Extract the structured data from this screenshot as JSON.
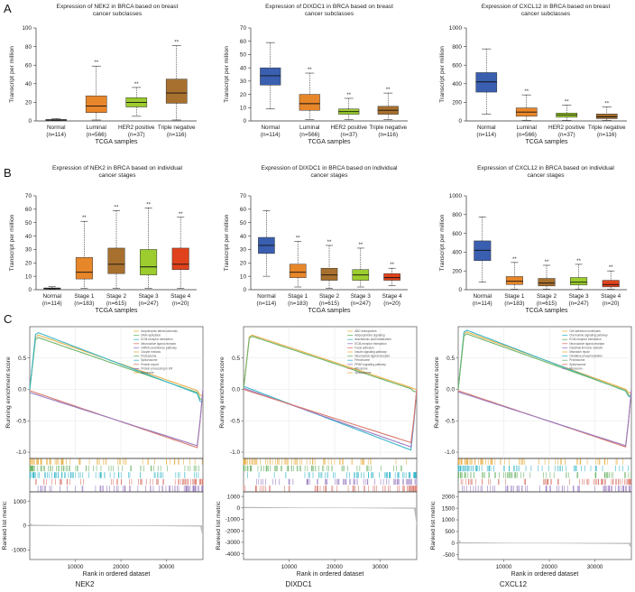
{
  "panels": {
    "A": "A",
    "B": "B",
    "C": "C"
  },
  "colors": {
    "normal": "#3a5fb0",
    "luminal": "#e8862a",
    "her2": "#9ccc2e",
    "triple": "#a8702e",
    "stage1": "#e8862a",
    "stage2": "#a8702e",
    "stage3": "#9ccc2e",
    "stage4": "#e0431c"
  },
  "chart_data": [
    {
      "type": "box",
      "id": "A1",
      "title": [
        "Expression of NEK2 in BRCA based on breast",
        "cancer subclasses"
      ],
      "ylabel": "Transcript per million",
      "xlabel": "TCGA samples",
      "ylim": [
        0,
        100
      ],
      "yticks": [
        0,
        20,
        40,
        60,
        80,
        100
      ],
      "categories": [
        "Normal",
        "Luminal",
        "HER2 positive",
        "Triple negative"
      ],
      "counts": [
        "(n=114)",
        "(n=566)",
        "(n=37)",
        "(n=116)"
      ],
      "colors": [
        "#3a5fb0",
        "#e8862a",
        "#9ccc2e",
        "#a8702e"
      ],
      "boxes": [
        {
          "min": 0.2,
          "q1": 0.6,
          "median": 1.0,
          "q3": 1.5,
          "max": 2.5
        },
        {
          "min": 1,
          "q1": 9,
          "median": 16,
          "q3": 27,
          "max": 59
        },
        {
          "min": 5,
          "q1": 15,
          "median": 20,
          "q3": 25,
          "max": 36
        },
        {
          "min": 1,
          "q1": 19,
          "median": 30,
          "q3": 45,
          "max": 81
        }
      ],
      "significance": [
        "",
        "**",
        "**",
        "**"
      ]
    },
    {
      "type": "box",
      "id": "A2",
      "title": [
        "Expression of DIXDC1 in BRCA based on breast",
        "cancer subclasses"
      ],
      "ylabel": "Transcript per million",
      "xlabel": "TCGA samples",
      "ylim": [
        0,
        70
      ],
      "yticks": [
        0,
        10,
        20,
        30,
        40,
        50,
        60,
        70
      ],
      "categories": [
        "Normal",
        "Luminal",
        "HER2 positive",
        "Triple negative"
      ],
      "counts": [
        "(n=114)",
        "(n=566)",
        "(n=37)",
        "(n=116)"
      ],
      "colors": [
        "#3a5fb0",
        "#e8862a",
        "#9ccc2e",
        "#a8702e"
      ],
      "boxes": [
        {
          "min": 9,
          "q1": 27,
          "median": 34,
          "q3": 40,
          "max": 59
        },
        {
          "min": 1,
          "q1": 8,
          "median": 13,
          "q3": 20,
          "max": 36
        },
        {
          "min": 1,
          "q1": 5,
          "median": 7,
          "q3": 9,
          "max": 17
        },
        {
          "min": 1,
          "q1": 5,
          "median": 8,
          "q3": 11,
          "max": 21
        }
      ],
      "significance": [
        "",
        "**",
        "**",
        "**"
      ]
    },
    {
      "type": "box",
      "id": "A3",
      "title": [
        "Expression of CXCL12 in BRCA based on breast",
        "cancer subclasses"
      ],
      "ylabel": "Transcript per million",
      "xlabel": "TCGA samples",
      "ylim": [
        0,
        1000
      ],
      "yticks": [
        0,
        200,
        400,
        600,
        800,
        1000
      ],
      "categories": [
        "Normal",
        "Luminal",
        "HER2 positive",
        "Triple negative"
      ],
      "counts": [
        "(n=114)",
        "(n=566)",
        "(n=37)",
        "(n=116)"
      ],
      "colors": [
        "#3a5fb0",
        "#e8862a",
        "#9ccc2e",
        "#a8702e"
      ],
      "boxes": [
        {
          "min": 75,
          "q1": 310,
          "median": 420,
          "q3": 520,
          "max": 775
        },
        {
          "min": 5,
          "q1": 50,
          "median": 95,
          "q3": 140,
          "max": 280
        },
        {
          "min": 5,
          "q1": 40,
          "median": 65,
          "q3": 85,
          "max": 170
        },
        {
          "min": 5,
          "q1": 25,
          "median": 45,
          "q3": 75,
          "max": 150
        }
      ],
      "significance": [
        "",
        "**",
        "**",
        "**"
      ]
    },
    {
      "type": "box",
      "id": "B1",
      "title": [
        "Expression of NEK2 in BRCA based on individual",
        "cancer stages"
      ],
      "ylabel": "Transcript per million",
      "xlabel": "TCGA samples",
      "ylim": [
        0,
        70
      ],
      "yticks": [
        0,
        10,
        20,
        30,
        40,
        50,
        60,
        70
      ],
      "categories": [
        "Normal",
        "Stage 1",
        "Stage 2",
        "Stage 3",
        "Stage 4"
      ],
      "counts": [
        "(n=114)",
        "(n=183)",
        "(n=615)",
        "(n=247)",
        "(n=20)"
      ],
      "colors": [
        "#3a5fb0",
        "#e8862a",
        "#a8702e",
        "#9ccc2e",
        "#e0431c"
      ],
      "boxes": [
        {
          "min": 0.2,
          "q1": 0.5,
          "median": 0.9,
          "q3": 1.3,
          "max": 2.2
        },
        {
          "min": 1,
          "q1": 8,
          "median": 13,
          "q3": 24,
          "max": 51
        },
        {
          "min": 1,
          "q1": 12,
          "median": 19,
          "q3": 31,
          "max": 59
        },
        {
          "min": 1,
          "q1": 11,
          "median": 17,
          "q3": 30,
          "max": 61
        },
        {
          "min": 1,
          "q1": 15,
          "median": 19,
          "q3": 31,
          "max": 54
        }
      ],
      "significance": [
        "",
        "**",
        "**",
        "**",
        "**"
      ]
    },
    {
      "type": "box",
      "id": "B2",
      "title": [
        "Expression of DIXDC1 in BRCA based on individual",
        "cancer stages"
      ],
      "ylabel": "Transcript per million",
      "xlabel": "TCGA samples",
      "ylim": [
        0,
        70
      ],
      "yticks": [
        0,
        10,
        20,
        30,
        40,
        50,
        60,
        70
      ],
      "categories": [
        "Normal",
        "Stage 1",
        "Stage 2",
        "Stage 3",
        "Stage 4"
      ],
      "counts": [
        "(n=114)",
        "(n=183)",
        "(n=615)",
        "(n=247)",
        "(n=20)"
      ],
      "colors": [
        "#3a5fb0",
        "#e8862a",
        "#a8702e",
        "#9ccc2e",
        "#e0431c"
      ],
      "boxes": [
        {
          "min": 10,
          "q1": 27,
          "median": 33,
          "q3": 39,
          "max": 59
        },
        {
          "min": 2,
          "q1": 9,
          "median": 13,
          "q3": 19,
          "max": 36
        },
        {
          "min": 1,
          "q1": 7,
          "median": 11,
          "q3": 16,
          "max": 33
        },
        {
          "min": 2,
          "q1": 7,
          "median": 11,
          "q3": 15,
          "max": 31
        },
        {
          "min": 3,
          "q1": 7,
          "median": 9,
          "q3": 12,
          "max": 16
        }
      ],
      "significance": [
        "",
        "**",
        "**",
        "**",
        "**"
      ]
    },
    {
      "type": "box",
      "id": "B3",
      "title": [
        "Expression of CXCL12 in BRCA based on individual",
        "cancer stages"
      ],
      "ylabel": "Transcript per million",
      "xlabel": "TCGA samples",
      "ylim": [
        0,
        1000
      ],
      "yticks": [
        0,
        200,
        400,
        600,
        800,
        1000
      ],
      "categories": [
        "Normal",
        "Stage 1",
        "Stage 2",
        "Stage 3",
        "Stage 4"
      ],
      "counts": [
        "(n=114)",
        "(n=183)",
        "(n=615)",
        "(n=247)",
        "(n=20)"
      ],
      "colors": [
        "#3a5fb0",
        "#e8862a",
        "#a8702e",
        "#9ccc2e",
        "#e0431c"
      ],
      "boxes": [
        {
          "min": 80,
          "q1": 310,
          "median": 420,
          "q3": 520,
          "max": 775
        },
        {
          "min": 5,
          "q1": 55,
          "median": 90,
          "q3": 140,
          "max": 290
        },
        {
          "min": 5,
          "q1": 40,
          "median": 70,
          "q3": 120,
          "max": 260
        },
        {
          "min": 5,
          "q1": 50,
          "median": 80,
          "q3": 130,
          "max": 270
        },
        {
          "min": 5,
          "q1": 30,
          "median": 55,
          "q3": 100,
          "max": 200
        }
      ],
      "significance": [
        "",
        "**",
        "**",
        "**",
        "**"
      ]
    },
    {
      "type": "gsea",
      "id": "C1",
      "gene": "NEK2",
      "ylabel_es": "Running enrichment score",
      "ylabel_metric": "Ranked list metric",
      "xlabel": "Rank in ordered dataset",
      "xticks": [
        10000,
        20000,
        30000
      ],
      "xlim": [
        0,
        38000
      ],
      "es_yticks": [
        0.5,
        0.0,
        -0.5,
        -1.0
      ],
      "es_ylim": [
        -1.1,
        1.0
      ],
      "metric_yticks": [
        1000,
        0,
        -1000
      ],
      "metric_ylim": [
        -1400,
        1400
      ],
      "legend": [
        "Amyotrophic lateral sclerosis",
        "DNA replication",
        "ECM-receptor interaction",
        "Neuroactive ligand-receptor",
        "mRNA surveillance pathway",
        "Oocyte meiosis",
        "Proteasome",
        "Spliceosome",
        "Protein export",
        "Protein processing in ER",
        "Ribosome"
      ],
      "series": [
        {
          "name": "up-1",
          "color": "#e8b04a",
          "peak": 0.88,
          "end": -0.05
        },
        {
          "name": "up-2",
          "color": "#6fb56a",
          "peak": 0.84,
          "end": -0.08
        },
        {
          "name": "up-3",
          "color": "#3bb7c9",
          "peak": 0.92,
          "end": -0.1
        },
        {
          "name": "down-1",
          "color": "#d97a6e",
          "peak": -0.93,
          "end": -0.02
        },
        {
          "name": "down-2",
          "color": "#9a7cc1",
          "peak": -0.9,
          "end": -0.05
        }
      ]
    },
    {
      "type": "gsea",
      "id": "C2",
      "gene": "DIXDC1",
      "ylabel_es": "Running enrichment score",
      "ylabel_metric": "Ranked list metric",
      "xlabel": "Rank in ordered dataset",
      "xticks": [
        10000,
        20000,
        30000
      ],
      "xlim": [
        0,
        38000
      ],
      "es_yticks": [
        0.5,
        0.0,
        -0.5,
        -1.0
      ],
      "es_ylim": [
        -1.1,
        1.0
      ],
      "metric_yticks": [
        1000,
        0,
        -1000,
        -2000,
        -3000,
        -4000
      ],
      "metric_ylim": [
        -4500,
        1400
      ],
      "legend": [
        "ABC transporters",
        "Adipocytokine signaling",
        "Arachidonic acid metabolism",
        "ECM-receptor interaction",
        "Focal adhesion",
        "Insulin signaling pathway",
        "Neuroactive ligand-receptor",
        "Peroxisome",
        "PPAR signaling pathway",
        "Ribosome",
        "Spliceosome"
      ],
      "series": [
        {
          "name": "up-1",
          "color": "#e8b04a",
          "peak": 0.88,
          "end": 0.0
        },
        {
          "name": "up-2",
          "color": "#6fb56a",
          "peak": 0.86,
          "end": -0.02
        },
        {
          "name": "down-1",
          "color": "#3bb7c9",
          "peak": -0.97,
          "end": 0.05
        },
        {
          "name": "down-2",
          "color": "#9a7cc1",
          "peak": -0.92,
          "end": 0.02
        },
        {
          "name": "down-3",
          "color": "#d97a6e",
          "peak": -0.85,
          "end": 0.0
        }
      ]
    },
    {
      "type": "gsea",
      "id": "C3",
      "gene": "CXCL12",
      "ylabel_es": "Running enrichment score",
      "ylabel_metric": "Ranked list metric",
      "xlabel": "Rank in ordered dataset",
      "xticks": [
        10000,
        20000,
        30000
      ],
      "xlim": [
        0,
        38000
      ],
      "es_yticks": [
        0.5,
        0.0,
        -0.5,
        -1.0
      ],
      "es_ylim": [
        -1.1,
        1.0
      ],
      "metric_yticks": [
        2000,
        1500,
        1000,
        500,
        0,
        -500
      ],
      "metric_ylim": [
        -700,
        2200
      ],
      "legend": [
        "Cell adhesion molecules",
        "Chemokine signaling pathway",
        "ECM-receptor interaction",
        "Neuroactive ligand-receptor",
        "Intestinal immune network",
        "Mismatch repair",
        "Oxidative phosphorylation",
        "Proteasome",
        "Spliceosome",
        "Ribosome"
      ],
      "series": [
        {
          "name": "up-1",
          "color": "#e8b04a",
          "peak": 0.93,
          "end": -0.03
        },
        {
          "name": "up-2",
          "color": "#3bb7c9",
          "peak": 0.96,
          "end": -0.06
        },
        {
          "name": "up-3",
          "color": "#6fb56a",
          "peak": 0.9,
          "end": -0.05
        },
        {
          "name": "down-1",
          "color": "#d97a6e",
          "peak": -0.92,
          "end": -0.02
        },
        {
          "name": "down-2",
          "color": "#9a7cc1",
          "peak": -0.9,
          "end": -0.04
        }
      ]
    }
  ]
}
